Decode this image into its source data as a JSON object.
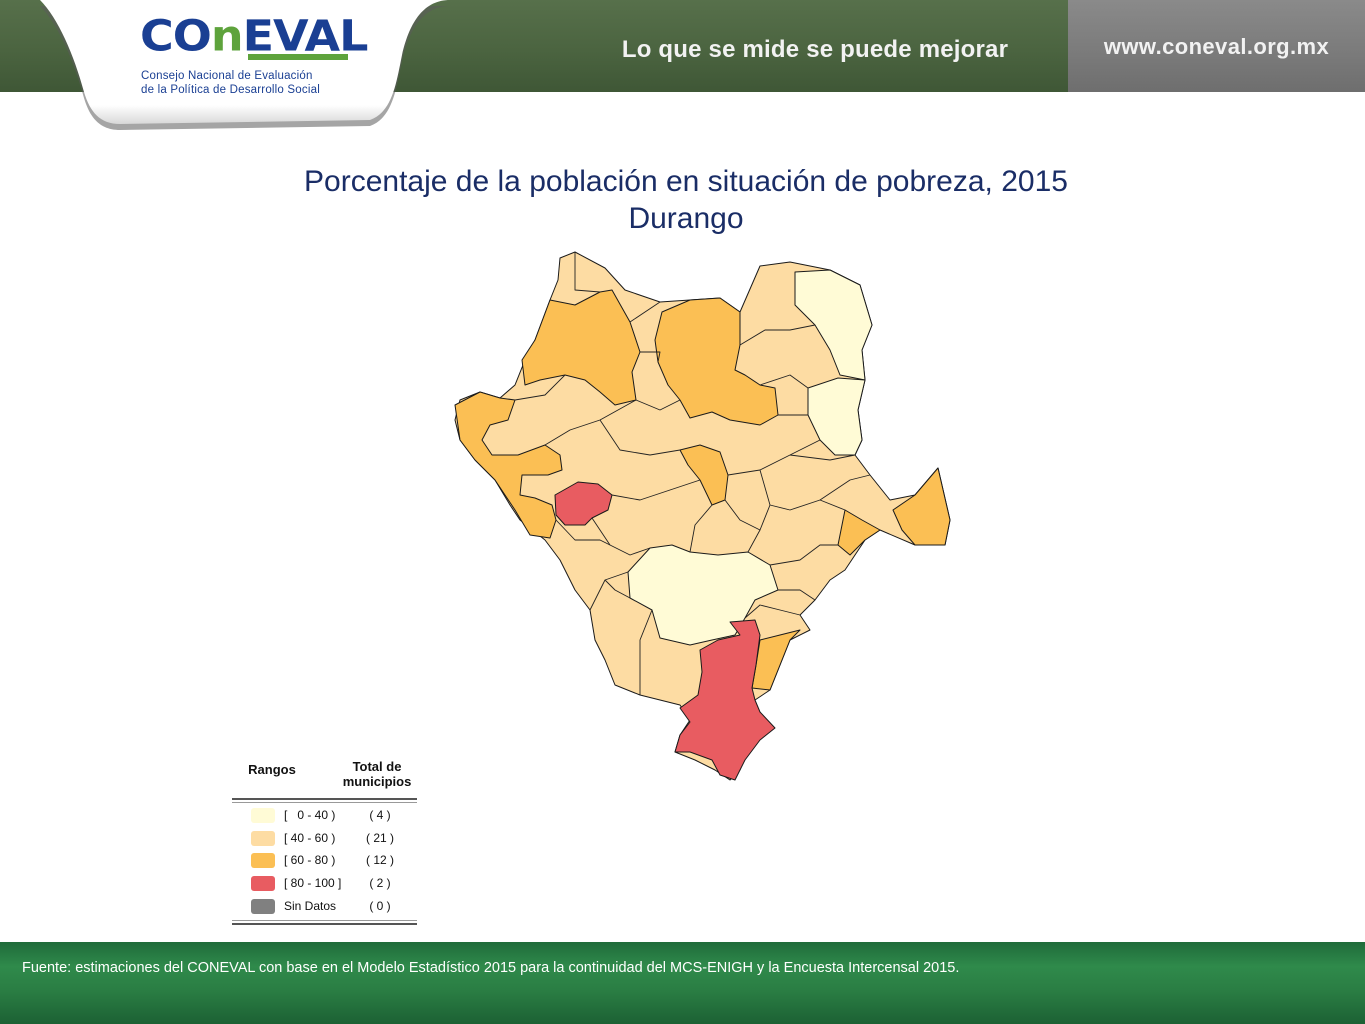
{
  "header": {
    "logo_wordmark_pre": "CO",
    "logo_wordmark_n": "n",
    "logo_wordmark_post": "EVAL",
    "logo_line1": "Consejo Nacional de Evaluación",
    "logo_line2": "de la Política de Desarrollo Social",
    "slogan": "Lo que se mide se puede mejorar",
    "website": "www.coneval.org.mx"
  },
  "title": "Porcentaje de la población en situación de pobreza, 2015",
  "subtitle": "Durango",
  "legend": {
    "header_ranges": "Rangos",
    "header_total": "Total de municipios",
    "items": [
      {
        "range": "[   0 - 40 )",
        "count": "( 4 )",
        "color": "#fffbd6"
      },
      {
        "range": "[ 40 - 60 )",
        "count": "( 21 )",
        "color": "#fddca3"
      },
      {
        "range": "[ 60 - 80 )",
        "count": "( 12 )",
        "color": "#fbbf54"
      },
      {
        "range": "[ 80 - 100 ]",
        "count": "( 2 )",
        "color": "#e85c61"
      },
      {
        "range": "Sin Datos",
        "count": "( 0 )",
        "color": "#808080"
      }
    ]
  },
  "colors": {
    "brand_blue": "#1a3f93",
    "brand_green": "#5ea33c",
    "header_green": "#4b6440",
    "header_gray": "#7a7a7a",
    "footer_green": "#2a7d43",
    "title_blue": "#1a2d66"
  },
  "footer": {
    "source": "Fuente: estimaciones del CONEVAL con base en el Modelo Estadístico 2015 para la continuidad del MCS-ENIGH y la Encuesta Intercensal 2015."
  }
}
